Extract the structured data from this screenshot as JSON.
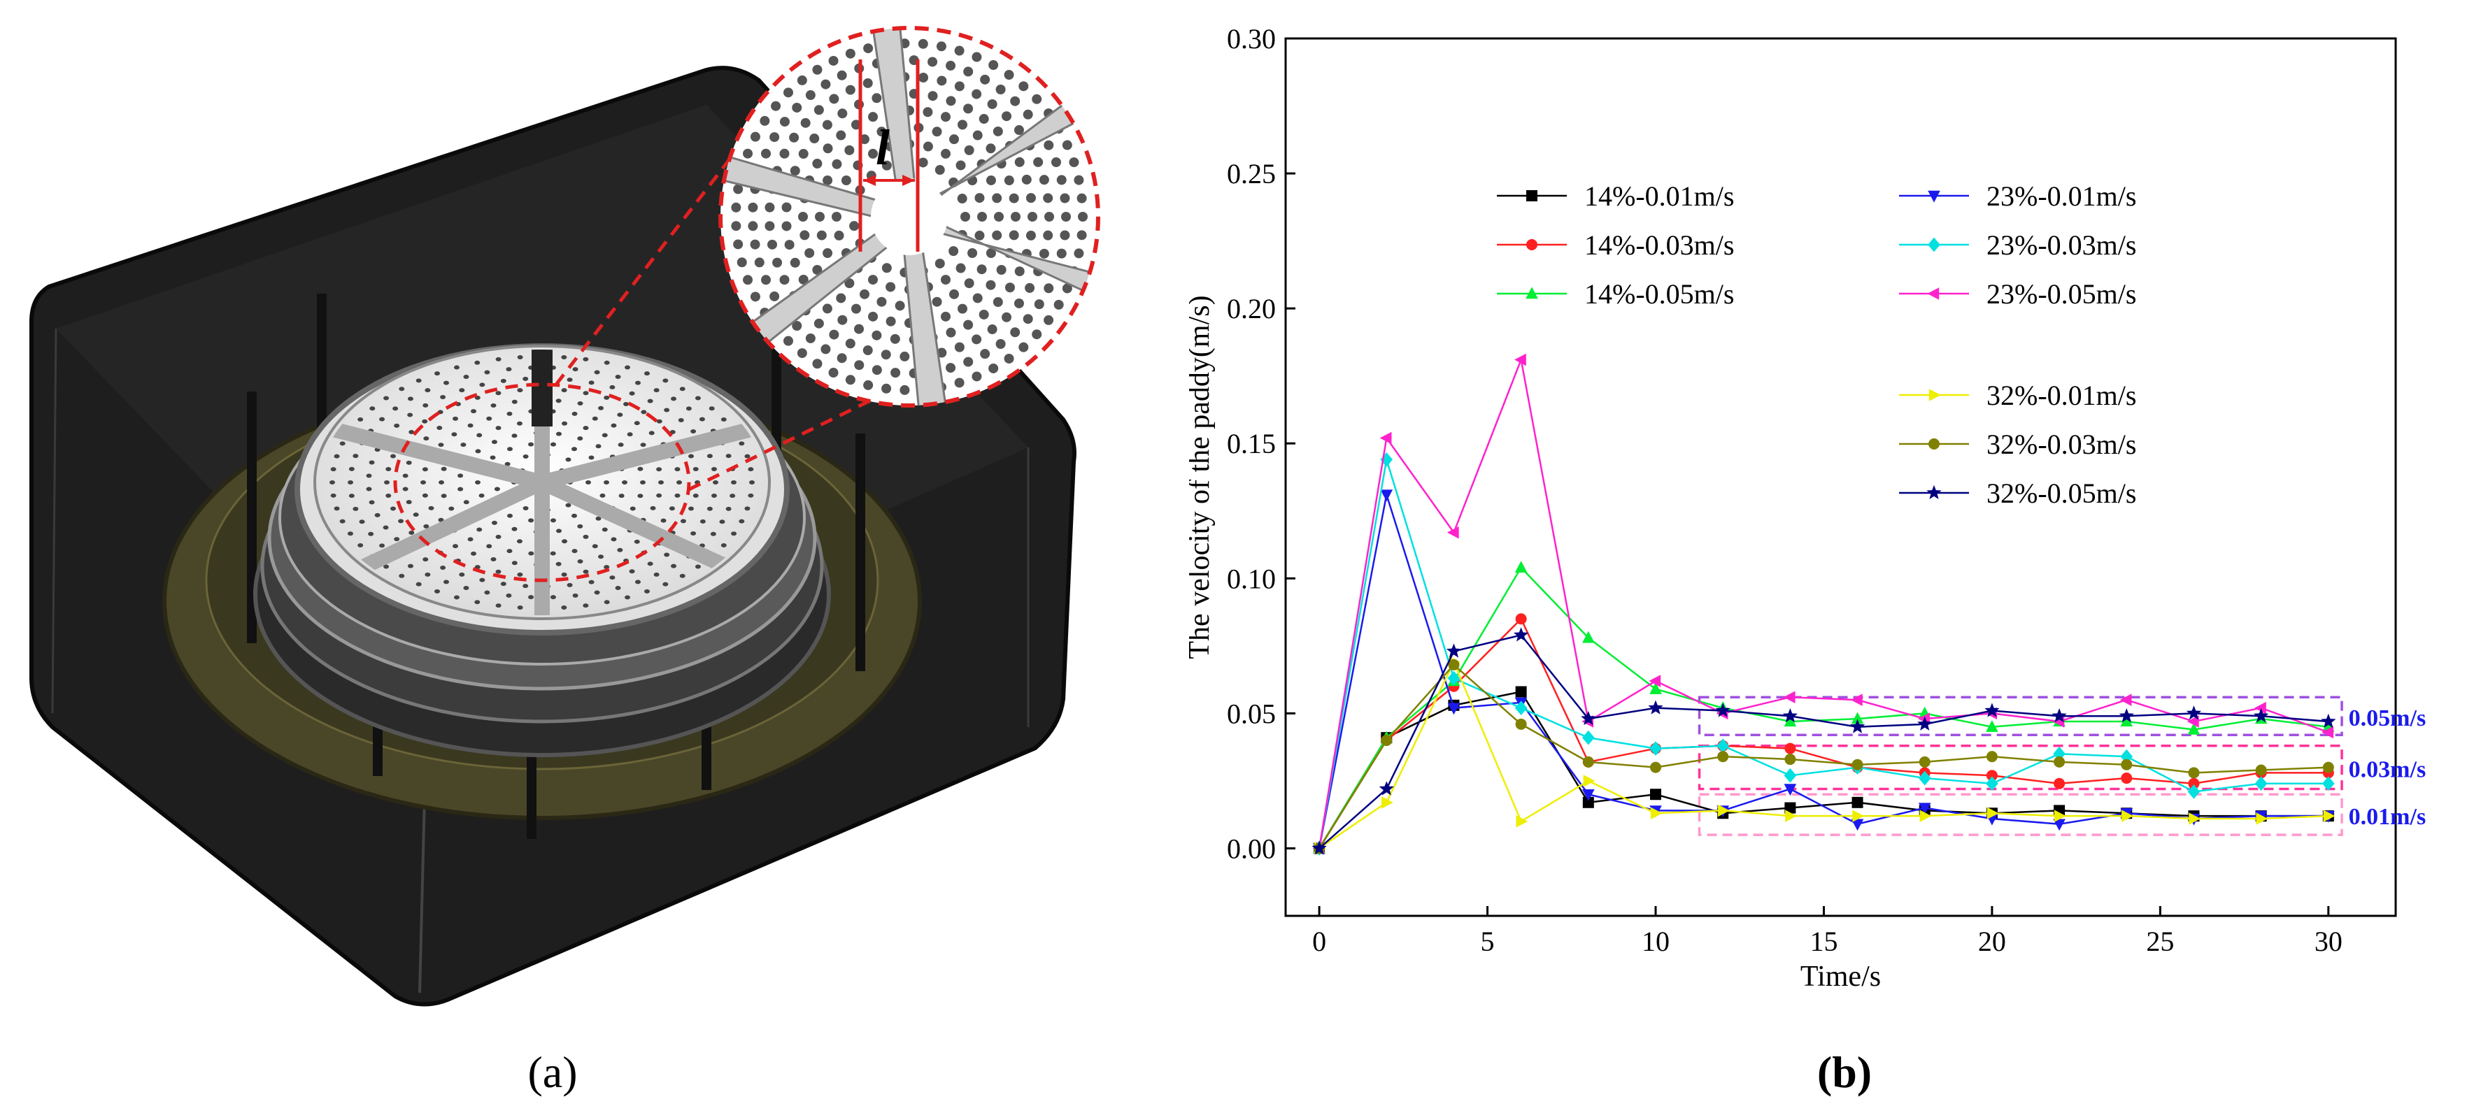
{
  "panel_a": {
    "label": "(a)",
    "zoom_label": "l"
  },
  "panel_b": {
    "label": "(b)"
  },
  "chart_data": {
    "type": "line",
    "title": "",
    "xlabel": "Time/s",
    "ylabel": "The velocity of the paddy(m/s)",
    "xlim": [
      -1,
      32
    ],
    "ylim": [
      -0.025,
      0.3
    ],
    "x_ticks": [
      0,
      5,
      10,
      15,
      20,
      25,
      30
    ],
    "y_ticks": [
      0.0,
      0.05,
      0.1,
      0.15,
      0.2,
      0.25,
      0.3
    ],
    "x_tick_labels": [
      "0",
      "5",
      "10",
      "15",
      "20",
      "25",
      "30"
    ],
    "y_tick_labels": [
      "0.00",
      "0.05",
      "0.10",
      "0.15",
      "0.20",
      "0.25",
      "0.30"
    ],
    "legend_position": "top-right",
    "x": [
      0,
      2,
      4,
      6,
      8,
      10,
      12,
      14,
      16,
      18,
      20,
      22,
      24,
      26,
      28,
      30
    ],
    "series": [
      {
        "name": "14%-0.01m/s",
        "color": "#000000",
        "marker": "square",
        "values": [
          0,
          0.041,
          0.053,
          0.058,
          0.017,
          0.02,
          0.013,
          0.015,
          0.017,
          0.014,
          0.013,
          0.014,
          0.013,
          0.012,
          0.012,
          0.012
        ]
      },
      {
        "name": "14%-0.03m/s",
        "color": "#ff2020",
        "marker": "circle",
        "values": [
          0,
          0.04,
          0.06,
          0.085,
          0.032,
          0.037,
          0.038,
          0.037,
          0.03,
          0.028,
          0.027,
          0.024,
          0.026,
          0.024,
          0.028,
          0.028
        ]
      },
      {
        "name": "14%-0.05m/s",
        "color": "#00ee33",
        "marker": "triangle-up",
        "values": [
          0,
          0.041,
          0.062,
          0.104,
          0.078,
          0.059,
          0.052,
          0.047,
          0.048,
          0.05,
          0.045,
          0.047,
          0.047,
          0.044,
          0.048,
          0.045
        ]
      },
      {
        "name": "23%-0.01m/s",
        "color": "#1a1aee",
        "marker": "triangle-down",
        "values": [
          0,
          0.131,
          0.052,
          0.054,
          0.02,
          0.014,
          0.014,
          0.022,
          0.009,
          0.015,
          0.011,
          0.009,
          0.013,
          0.011,
          0.012,
          0.012
        ]
      },
      {
        "name": "23%-0.03m/s",
        "color": "#00e0e0",
        "marker": "diamond",
        "values": [
          0,
          0.144,
          0.063,
          0.052,
          0.041,
          0.037,
          0.038,
          0.027,
          0.03,
          0.026,
          0.024,
          0.035,
          0.034,
          0.021,
          0.024,
          0.024
        ]
      },
      {
        "name": "23%-0.05m/s",
        "color": "#ff22cc",
        "marker": "triangle-left",
        "values": [
          0,
          0.152,
          0.117,
          0.181,
          0.047,
          0.062,
          0.05,
          0.056,
          0.055,
          0.048,
          0.05,
          0.047,
          0.055,
          0.047,
          0.052,
          0.043
        ]
      },
      {
        "name": "32%-0.01m/s",
        "color": "#eeee00",
        "marker": "triangle-right",
        "values": [
          0,
          0.017,
          0.069,
          0.01,
          0.025,
          0.013,
          0.014,
          0.012,
          0.012,
          0.012,
          0.013,
          0.012,
          0.012,
          0.011,
          0.011,
          0.012
        ]
      },
      {
        "name": "32%-0.03m/s",
        "color": "#808000",
        "marker": "circle",
        "values": [
          0,
          0.04,
          0.068,
          0.046,
          0.032,
          0.03,
          0.034,
          0.033,
          0.031,
          0.032,
          0.034,
          0.032,
          0.031,
          0.028,
          0.029,
          0.03
        ]
      },
      {
        "name": "32%-0.05m/s",
        "color": "#000080",
        "marker": "star",
        "values": [
          0,
          0.022,
          0.073,
          0.079,
          0.048,
          0.052,
          0.051,
          0.049,
          0.045,
          0.046,
          0.051,
          0.049,
          0.049,
          0.05,
          0.049,
          0.047
        ]
      }
    ],
    "annotations": [
      {
        "text": "0.05m/s",
        "color": "#1a1aee",
        "box_color": "#a050e0",
        "y_range": [
          0.042,
          0.056
        ]
      },
      {
        "text": "0.03m/s",
        "color": "#1a1aee",
        "box_color": "#ff3399",
        "y_range": [
          0.022,
          0.038
        ]
      },
      {
        "text": "0.01m/s",
        "color": "#1a1aee",
        "box_color": "#ff99cc",
        "y_range": [
          0.005,
          0.02
        ]
      }
    ]
  },
  "colors": {
    "box_dark": "#1e1e1e",
    "ring_gold": "#5a5530",
    "zoom_outline": "#e02020"
  }
}
